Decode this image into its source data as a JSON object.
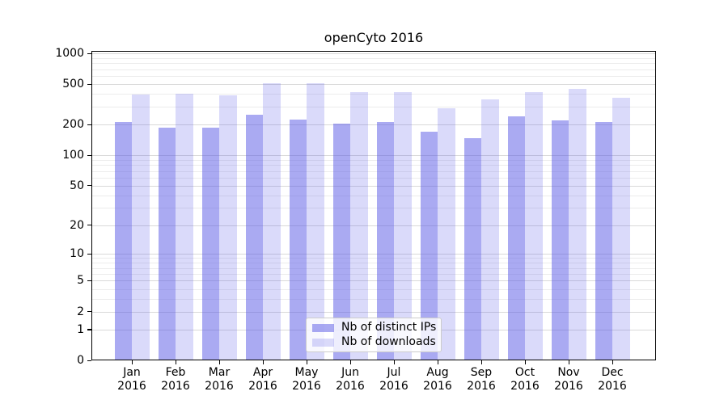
{
  "title": "openCyto 2016",
  "colors": {
    "distinct_ips_bar": "rgba(85,85,230,0.5)",
    "downloads_bar": "rgba(85,85,230,0.22)",
    "grid_major": "#d9d9d9",
    "grid_minor": "#ececec",
    "axis": "#000000",
    "background": "#ffffff"
  },
  "legend": {
    "items": [
      {
        "label": "Nb of distinct IPs",
        "color": "rgba(85,85,230,0.5)"
      },
      {
        "label": "Nb of downloads",
        "color": "rgba(85,85,230,0.22)"
      }
    ]
  },
  "chart_data": {
    "type": "bar",
    "title": "openCyto 2016",
    "categories": [
      "Jan",
      "Feb",
      "Mar",
      "Apr",
      "May",
      "Jun",
      "Jul",
      "Aug",
      "Sep",
      "Oct",
      "Nov",
      "Dec"
    ],
    "category_year": "2016",
    "series": [
      {
        "name": "Nb of distinct IPs",
        "color": "rgba(85,85,230,0.5)",
        "values": [
          213,
          186,
          186,
          250,
          224,
          205,
          211,
          172,
          148,
          243,
          220,
          213
        ]
      },
      {
        "name": "Nb of downloads",
        "color": "rgba(85,85,230,0.22)",
        "values": [
          394,
          405,
          386,
          514,
          514,
          420,
          419,
          289,
          355,
          415,
          449,
          369
        ]
      }
    ],
    "xlabel": "",
    "ylabel": "",
    "yscale": "log1p",
    "ylim": [
      0,
      1000
    ],
    "yticks": [
      0,
      1,
      2,
      5,
      10,
      20,
      50,
      100,
      200,
      500,
      1000
    ],
    "yticks_minor": [
      3,
      4,
      6,
      7,
      8,
      9,
      30,
      40,
      60,
      70,
      80,
      90,
      300,
      400,
      600,
      700,
      800,
      900
    ],
    "grid": true,
    "legend_position": "inside lower center"
  }
}
